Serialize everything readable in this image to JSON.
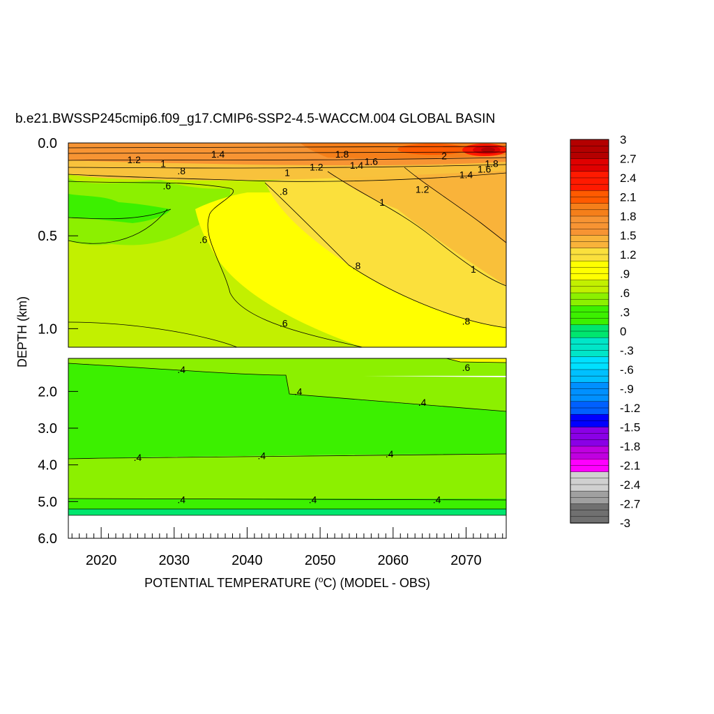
{
  "chart_data": {
    "type": "contour",
    "title": "b.e21.BWSSP245cmip6.f09_g17.CMIP6-SSP2-4.5-WACCM.004 GLOBAL BASIN",
    "xlabel": "POTENTIAL TEMPERATURE (",
    "xlabel_super": "o",
    "xlabel_tail": "C) (MODEL - OBS)",
    "ylabel": "DEPTH (km)",
    "xlim": [
      2015.5,
      2075.5
    ],
    "x_ticks": [
      "2020",
      "2030",
      "2040",
      "2050",
      "2060",
      "2070"
    ],
    "x_tick_values": [
      2020,
      2030,
      2040,
      2050,
      2060,
      2070
    ],
    "upper_panel": {
      "ylim": [
        0.0,
        1.1
      ],
      "y_ticks": [
        "0.0",
        "0.5",
        "1.0"
      ],
      "y_tick_values": [
        0.0,
        0.5,
        1.0
      ],
      "contour_labels": [
        {
          "text": "1.2",
          "x": 2024.5,
          "y": 0.09
        },
        {
          "text": "1.4",
          "x": 2036.0,
          "y": 0.06
        },
        {
          "text": "1",
          "x": 2028.5,
          "y": 0.11
        },
        {
          "text": ".8",
          "x": 2031.0,
          "y": 0.15
        },
        {
          "text": ".6",
          "x": 2029.0,
          "y": 0.23
        },
        {
          "text": "1",
          "x": 2045.5,
          "y": 0.16
        },
        {
          "text": "1.2",
          "x": 2049.5,
          "y": 0.13
        },
        {
          "text": ".8",
          "x": 2045.0,
          "y": 0.26
        },
        {
          "text": "1.8",
          "x": 2053.0,
          "y": 0.06
        },
        {
          "text": "1.6",
          "x": 2057.0,
          "y": 0.1
        },
        {
          "text": "1.4",
          "x": 2055.0,
          "y": 0.12
        },
        {
          "text": "2",
          "x": 2067.0,
          "y": 0.07
        },
        {
          "text": "1.8",
          "x": 2073.5,
          "y": 0.11
        },
        {
          "text": "1.6",
          "x": 2072.5,
          "y": 0.14
        },
        {
          "text": "1.4",
          "x": 2070.0,
          "y": 0.17
        },
        {
          "text": "1.2",
          "x": 2064.0,
          "y": 0.25
        },
        {
          "text": "1",
          "x": 2058.5,
          "y": 0.32
        },
        {
          "text": ".6",
          "x": 2034.0,
          "y": 0.52
        },
        {
          "text": ".8",
          "x": 2055.0,
          "y": 0.66
        },
        {
          "text": "1",
          "x": 2071.0,
          "y": 0.68
        },
        {
          "text": ".6",
          "x": 2045.0,
          "y": 0.97
        },
        {
          "text": ".8",
          "x": 2070.0,
          "y": 0.96
        }
      ]
    },
    "lower_panel": {
      "ylim": [
        1.1,
        6.0
      ],
      "y_ticks": [
        "2.0",
        "3.0",
        "4.0",
        "5.0",
        "6.0"
      ],
      "y_tick_values": [
        2.0,
        3.0,
        4.0,
        5.0,
        6.0
      ],
      "contour_labels": [
        {
          "text": ".4",
          "x": 2031.0,
          "y": 1.4
        },
        {
          "text": ".6",
          "x": 2070.0,
          "y": 1.35
        },
        {
          "text": ".4",
          "x": 2047.0,
          "y": 2.0
        },
        {
          "text": ".4",
          "x": 2064.0,
          "y": 2.3
        },
        {
          "text": ".4",
          "x": 2025.0,
          "y": 3.8
        },
        {
          "text": ".4",
          "x": 2042.0,
          "y": 3.75
        },
        {
          "text": ".4",
          "x": 2059.5,
          "y": 3.7
        },
        {
          "text": ".4",
          "x": 2031.0,
          "y": 4.95
        },
        {
          "text": ".4",
          "x": 2049.0,
          "y": 4.95
        },
        {
          "text": ".4",
          "x": 2066.0,
          "y": 4.95
        }
      ]
    },
    "colorbar": {
      "labels": [
        "3",
        "2.7",
        "2.4",
        "2.1",
        "1.8",
        "1.5",
        "1.2",
        ".9",
        ".6",
        ".3",
        "0",
        "-.3",
        "-.6",
        "-.9",
        "-1.2",
        "-1.5",
        "-1.8",
        "-2.1",
        "-2.4",
        "-2.7",
        "-3"
      ],
      "label_values": [
        3.0,
        2.7,
        2.4,
        2.1,
        1.8,
        1.5,
        1.2,
        0.9,
        0.6,
        0.3,
        0.0,
        -0.3,
        -0.6,
        -0.9,
        -1.2,
        -1.5,
        -1.8,
        -2.1,
        -2.4,
        -2.7,
        -3.0
      ],
      "range": [
        -3.0,
        3.0
      ],
      "interval": 0.1,
      "colors_top_to_bottom": [
        "#b40000",
        "#e00000",
        "#ff1a00",
        "#ff5a00",
        "#f57f1a",
        "#f79433",
        "#f9b33a",
        "#fbe03c",
        "#ffff00",
        "#c2f000",
        "#8cf000",
        "#3cf000",
        "#00e66e",
        "#00e6c8",
        "#00e0ff",
        "#00c0ff",
        "#0090ff",
        "#0060ff",
        "#0000ff",
        "#8a00e6",
        "#c000e0",
        "#ff00ff",
        "#d0d0d0",
        "#a0a0a0",
        "#707070"
      ]
    }
  }
}
